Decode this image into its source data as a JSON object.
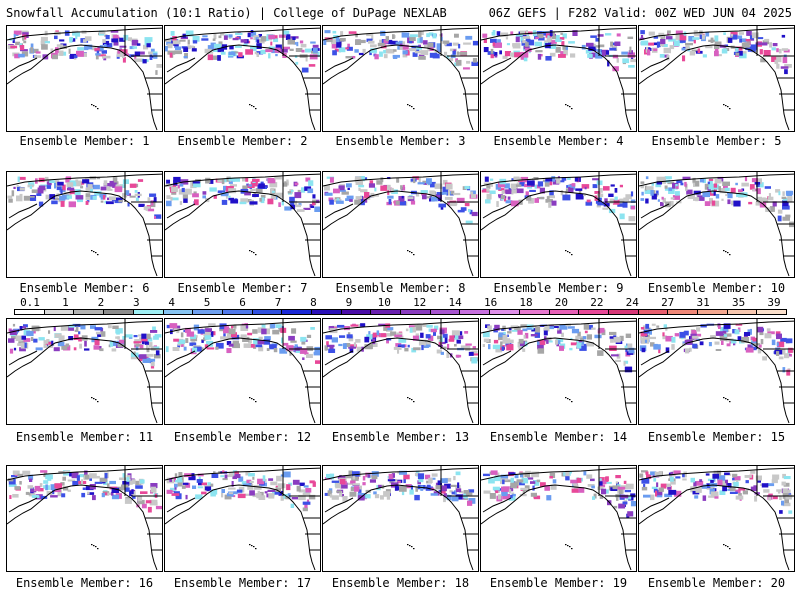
{
  "header": {
    "left": "Snowfall Accumulation (10:1 Ratio) | College of DuPage NEXLAB",
    "right": "06Z GEFS | F282 Valid: 00Z WED JUN 04 2025"
  },
  "members": [
    "Ensemble Member: 1",
    "Ensemble Member: 2",
    "Ensemble Member: 3",
    "Ensemble Member: 4",
    "Ensemble Member: 5",
    "Ensemble Member: 6",
    "Ensemble Member: 7",
    "Ensemble Member: 8",
    "Ensemble Member: 9",
    "Ensemble Member: 10",
    "Ensemble Member: 11",
    "Ensemble Member: 12",
    "Ensemble Member: 13",
    "Ensemble Member: 14",
    "Ensemble Member: 15",
    "Ensemble Member: 16",
    "Ensemble Member: 17",
    "Ensemble Member: 18",
    "Ensemble Member: 19",
    "Ensemble Member: 20"
  ],
  "scale": {
    "labels": [
      "0.1",
      "1",
      "2",
      "3",
      "4",
      "5",
      "6",
      "7",
      "8",
      "9",
      "10",
      "12",
      "14",
      "16",
      "18",
      "20",
      "22",
      "24",
      "27",
      "31",
      "35",
      "39"
    ],
    "colors": [
      "#ffffff",
      "#d9d9d9",
      "#b3b3b3",
      "#8c8c8c",
      "#9ff0f5",
      "#87c5f3",
      "#6ea0f0",
      "#4f78ea",
      "#3050e0",
      "#1a28d8",
      "#2a10b8",
      "#4a0ca8",
      "#6a20b0",
      "#8a3cc0",
      "#a855d0",
      "#c870e0",
      "#e090ea",
      "#e878d0",
      "#e860b8",
      "#e84898",
      "#d83878",
      "#e85e6e",
      "#f08878",
      "#f4a890",
      "#f8c8b0",
      "#fbe0cc"
    ],
    "snow_palette": [
      "#c8c8c8",
      "#a6a6a6",
      "#8ce4f0",
      "#6a9cf0",
      "#3c50e6",
      "#2010c8",
      "#8a3cc0",
      "#d860c0",
      "#e84898"
    ]
  }
}
